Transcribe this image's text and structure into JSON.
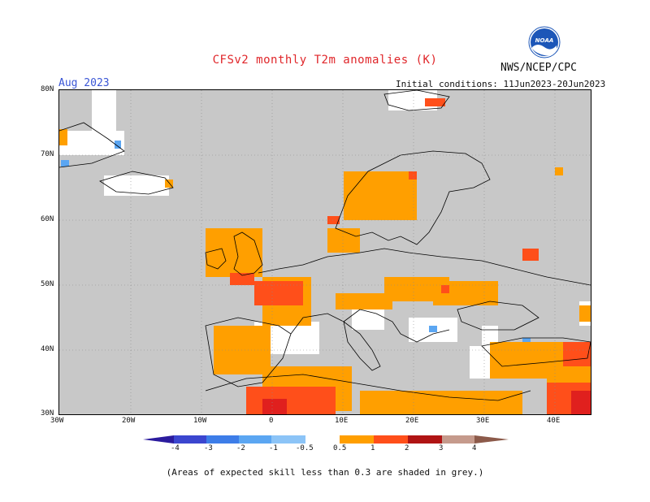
{
  "header": {
    "title": "CFSv2 monthly T2m anomalies (K)",
    "agency": "NWS/NCEP/CPC",
    "logo_text": "NOAA",
    "month": "Aug 2023",
    "initial_conditions": "Initial conditions: 11Jun2023-20Jun2023"
  },
  "axes": {
    "lat_labels": [
      "80N",
      "70N",
      "60N",
      "50N",
      "40N",
      "30N"
    ],
    "lon_labels": [
      "30W",
      "20W",
      "10W",
      "0",
      "10E",
      "20E",
      "30E",
      "40E"
    ]
  },
  "colorbar": {
    "labels": [
      "-4",
      "-3",
      "-2",
      "-1",
      "-0.5",
      "0.5",
      "1",
      "2",
      "3",
      "4"
    ],
    "colors": [
      "#2b1b9e",
      "#3b46cf",
      "#3d7de8",
      "#5ba6f2",
      "#8cc4f7",
      "#ffffff",
      "#ff9f00",
      "#ff4f1a",
      "#e0201e",
      "#b01414",
      "#c59a8c",
      "#8c5a4a"
    ]
  },
  "map": {
    "background": "#c8c8c8",
    "land_outline": "#000000",
    "grid_color": "#888888"
  },
  "footnote": "(Areas of expected skill less than 0.3 are shaded in grey.)"
}
